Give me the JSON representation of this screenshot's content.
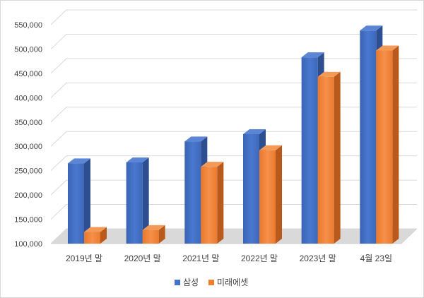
{
  "chart_data": {
    "type": "bar",
    "categories": [
      "2019년 말",
      "2020년 말",
      "2021년 말",
      "2022년 말",
      "2023년 말",
      "4월 23일"
    ],
    "series": [
      {
        "name": "삼성",
        "values": [
          265000,
          267000,
          310000,
          325000,
          483000,
          538000
        ],
        "color": "#4472c4"
      },
      {
        "name": "미래에셋",
        "values": [
          124000,
          128000,
          258000,
          292000,
          443000,
          497000
        ],
        "color": "#ed7d31"
      }
    ],
    "ylim": [
      100000,
      550000
    ],
    "yticks": [
      "100,000",
      "150,000",
      "200,000",
      "250,000",
      "300,000",
      "350,000",
      "400,000",
      "450,000",
      "500,000",
      "550,000"
    ],
    "grid": true,
    "legend_position": "bottom",
    "style": "3d-clustered-column"
  }
}
